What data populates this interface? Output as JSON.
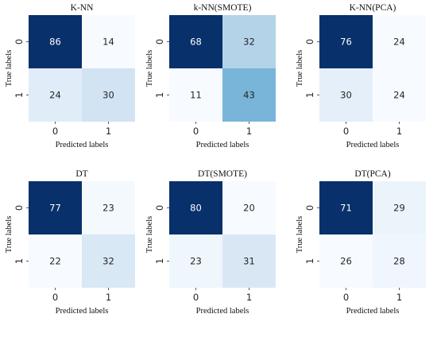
{
  "chart_data": [
    {
      "type": "heatmap",
      "title": "K-NN",
      "xlabel": "Predicted labels",
      "ylabel": "True labels",
      "x_categories": [
        "0",
        "1"
      ],
      "y_categories": [
        "0",
        "1"
      ],
      "values": [
        [
          86,
          14
        ],
        [
          24,
          30
        ]
      ]
    },
    {
      "type": "heatmap",
      "title": "k-NN(SMOTE)",
      "xlabel": "Predicted labels",
      "ylabel": "True labels",
      "x_categories": [
        "0",
        "1"
      ],
      "y_categories": [
        "0",
        "1"
      ],
      "values": [
        [
          68,
          32
        ],
        [
          11,
          43
        ]
      ]
    },
    {
      "type": "heatmap",
      "title": "K-NN(PCA)",
      "xlabel": "Predicted labels",
      "ylabel": "True labels",
      "x_categories": [
        "0",
        "1"
      ],
      "y_categories": [
        "0",
        "1"
      ],
      "values": [
        [
          76,
          24
        ],
        [
          30,
          24
        ]
      ]
    },
    {
      "type": "heatmap",
      "title": "DT",
      "xlabel": "Predicted labels",
      "ylabel": "True labels",
      "x_categories": [
        "0",
        "1"
      ],
      "y_categories": [
        "0",
        "1"
      ],
      "values": [
        [
          77,
          23
        ],
        [
          22,
          32
        ]
      ]
    },
    {
      "type": "heatmap",
      "title": "DT(SMOTE)",
      "xlabel": "Predicted labels",
      "ylabel": "True labels",
      "x_categories": [
        "0",
        "1"
      ],
      "y_categories": [
        "0",
        "1"
      ],
      "values": [
        [
          80,
          20
        ],
        [
          23,
          31
        ]
      ]
    },
    {
      "type": "heatmap",
      "title": "DT(PCA)",
      "xlabel": "Predicted labels",
      "ylabel": "True labels",
      "x_categories": [
        "0",
        "1"
      ],
      "y_categories": [
        "0",
        "1"
      ],
      "values": [
        [
          71,
          29
        ],
        [
          26,
          28
        ]
      ]
    }
  ],
  "colormap": {
    "low": "#f7fbff",
    "mid": "#6baed6",
    "high": "#08306b"
  }
}
